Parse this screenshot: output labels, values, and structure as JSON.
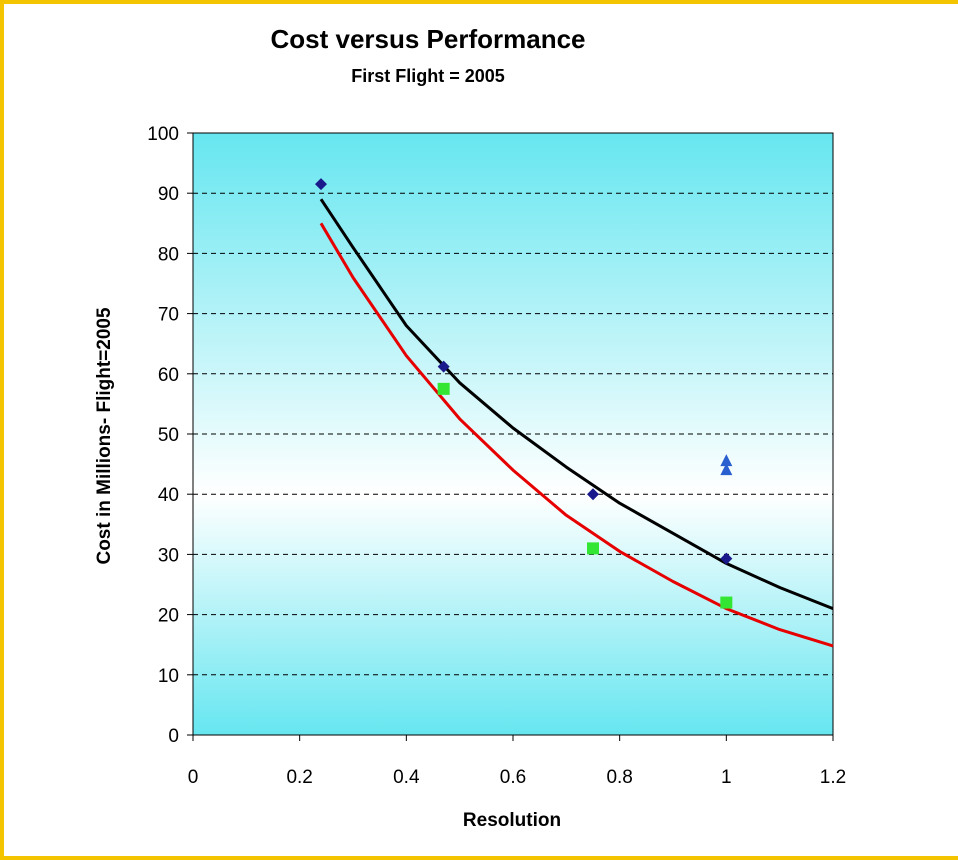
{
  "chart_data": {
    "type": "scatter",
    "title": "Cost versus Performance",
    "subtitle": "First Flight = 2005",
    "xlabel": "Resolution",
    "ylabel": "Cost in Millions- Flight=2005",
    "xlim": [
      0,
      1.2
    ],
    "ylim": [
      0,
      100
    ],
    "xticks": [
      "0",
      "0.2",
      "0.4",
      "0.6",
      "0.8",
      "1",
      "1.2"
    ],
    "yticks": [
      "0",
      "10",
      "20",
      "30",
      "40",
      "50",
      "60",
      "70",
      "80",
      "90",
      "100"
    ],
    "grid": "horizontal-dashed",
    "legend": "none",
    "colors": {
      "plot_top": "#66e6f0",
      "plot_bottom": "#66e6f0",
      "plot_middle": "#ffffff",
      "border": "#f5c400"
    },
    "series": [
      {
        "marker": "diamond",
        "color": "#1a1a8c",
        "points": [
          [
            0.24,
            91.5
          ],
          [
            0.47,
            61.2
          ],
          [
            0.75,
            40.0
          ],
          [
            1.0,
            29.3
          ]
        ]
      },
      {
        "marker": "square",
        "color": "#33e633",
        "points": [
          [
            0.47,
            57.5
          ],
          [
            0.75,
            31.0
          ],
          [
            1.0,
            22.0
          ]
        ]
      },
      {
        "marker": "triangle",
        "color": "#2a5fd0",
        "points": [
          [
            1.0,
            45.5
          ],
          [
            1.0,
            44.0
          ]
        ]
      },
      {
        "type": "line",
        "color": "#000000",
        "points": [
          [
            0.24,
            89
          ],
          [
            0.3,
            81
          ],
          [
            0.4,
            68
          ],
          [
            0.5,
            58.5
          ],
          [
            0.6,
            51
          ],
          [
            0.7,
            44.5
          ],
          [
            0.8,
            38.5
          ],
          [
            0.9,
            33.5
          ],
          [
            1.0,
            28.5
          ],
          [
            1.1,
            24.5
          ],
          [
            1.2,
            21
          ]
        ]
      },
      {
        "type": "line",
        "color": "#e60000",
        "points": [
          [
            0.24,
            85
          ],
          [
            0.3,
            76
          ],
          [
            0.4,
            63
          ],
          [
            0.5,
            52.5
          ],
          [
            0.6,
            44
          ],
          [
            0.7,
            36.5
          ],
          [
            0.8,
            30.5
          ],
          [
            0.9,
            25.5
          ],
          [
            1.0,
            21
          ],
          [
            1.1,
            17.5
          ],
          [
            1.2,
            14.8
          ]
        ]
      }
    ]
  }
}
